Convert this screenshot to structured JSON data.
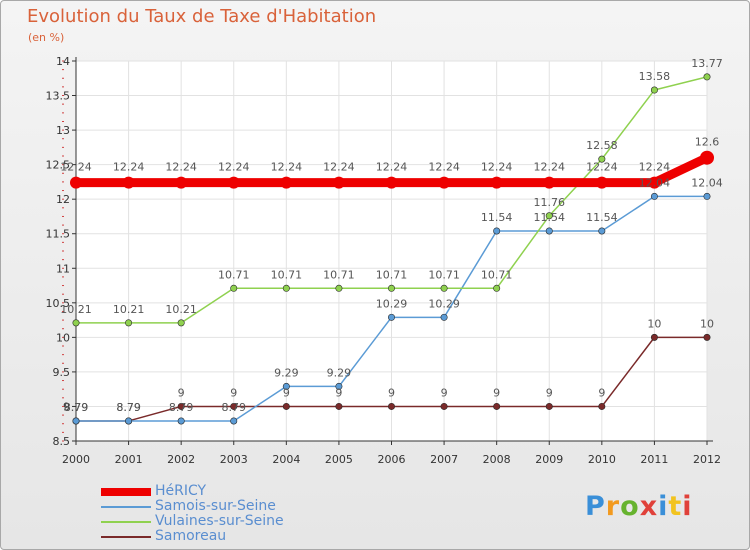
{
  "header": {
    "title": "Evolution du Taux de Taxe d'Habitation",
    "subtitle": "(en %)"
  },
  "logo": {
    "text": "Proxiti"
  },
  "chart_data": {
    "type": "line",
    "x": [
      2000,
      2001,
      2002,
      2003,
      2004,
      2005,
      2006,
      2007,
      2008,
      2009,
      2010,
      2011,
      2012
    ],
    "xlim": [
      2000,
      2012
    ],
    "ylim": [
      8.5,
      14
    ],
    "yticks": [
      8.5,
      9,
      9.5,
      10,
      10.5,
      11,
      11.5,
      12,
      12.5,
      13,
      13.5,
      14
    ],
    "ytick_labels": [
      "8.5",
      "9",
      "9.5",
      "10",
      "10.5",
      "11",
      "11.5",
      "12",
      "12.5",
      "13",
      "13.5",
      "14"
    ],
    "xtick_labels": [
      "2000",
      "2001",
      "2002",
      "2003",
      "2004",
      "2005",
      "2006",
      "2007",
      "2008",
      "2009",
      "2010",
      "2011",
      "2012"
    ],
    "grid": true,
    "legend_position": "bottom-left",
    "series": [
      {
        "name": "HéRICY",
        "color": "#ee0000",
        "values": [
          12.24,
          12.24,
          12.24,
          12.24,
          12.24,
          12.24,
          12.24,
          12.24,
          12.24,
          12.24,
          12.24,
          12.24,
          12.6
        ],
        "labels": [
          "12.24",
          "12.24",
          "12.24",
          "12.24",
          "12.24",
          "12.24",
          "12.24",
          "12.24",
          "12.24",
          "12.24",
          "12.24",
          "12.24",
          "12.6"
        ]
      },
      {
        "name": "Samois-sur-Seine",
        "color": "#5b9bd5",
        "values": [
          8.79,
          8.79,
          8.79,
          8.79,
          9.29,
          9.29,
          10.29,
          10.29,
          11.54,
          11.54,
          11.54,
          12.04,
          12.04
        ],
        "labels": [
          "8.79",
          "8.79",
          "8.79",
          "8.79",
          "9.29",
          "9.29",
          "10.29",
          "10.29",
          "11.54",
          "11.54",
          "11.54",
          "12.04",
          "12.04"
        ]
      },
      {
        "name": "Vulaines-sur-Seine",
        "color": "#8fd14f",
        "values": [
          10.21,
          10.21,
          10.21,
          10.71,
          10.71,
          10.71,
          10.71,
          10.71,
          10.71,
          11.76,
          12.58,
          13.58,
          13.77
        ],
        "labels": [
          "10.21",
          "10.21",
          "10.21",
          "10.71",
          "10.71",
          "10.71",
          "10.71",
          "10.71",
          "10.71",
          "11.76",
          "12.58",
          "13.58",
          "13.77"
        ]
      },
      {
        "name": "Samoreau",
        "color": "#7a2a2a",
        "values": [
          8.79,
          8.79,
          9,
          9,
          9,
          9,
          9,
          9,
          9,
          9,
          9,
          10,
          10
        ],
        "labels": [
          "8.79",
          "8.79",
          "9",
          "9",
          "9",
          "9",
          "9",
          "9",
          "9",
          "9",
          "9",
          "10",
          "10"
        ]
      }
    ]
  }
}
